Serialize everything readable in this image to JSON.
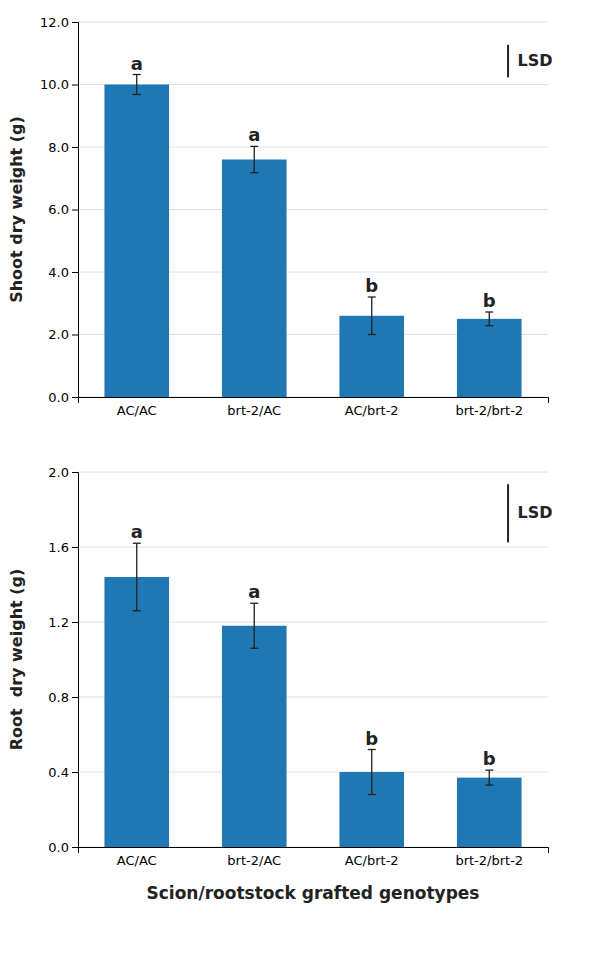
{
  "chart_data": [
    {
      "type": "bar",
      "categories": [
        "AC/AC",
        "brt-2/AC",
        "AC/brt-2",
        "brt-2/brt-2"
      ],
      "values": [
        10.0,
        7.6,
        2.6,
        2.5
      ],
      "errors": [
        0.32,
        0.42,
        0.6,
        0.22
      ],
      "annotations": [
        "a",
        "a",
        "b",
        "b"
      ],
      "lsd": {
        "label": "LSD",
        "center": 10.75,
        "half": 0.52
      },
      "ylabel": "Shoot dry weight (g)",
      "ylim": [
        0,
        12.0
      ],
      "yticks": [
        {
          "value": 0.0,
          "label": "0.0"
        },
        {
          "value": 2.0,
          "label": "2.0"
        },
        {
          "value": 4.0,
          "label": "4.0"
        },
        {
          "value": 6.0,
          "label": "6.0"
        },
        {
          "value": 8.0,
          "label": "8.0"
        },
        {
          "value": 10.0,
          "label": "10.0"
        },
        {
          "value": 12.0,
          "label": "12.0"
        }
      ],
      "grid": true
    },
    {
      "type": "bar",
      "categories": [
        "AC/AC",
        "brt-2/AC",
        "AC/brt-2",
        "brt-2/brt-2"
      ],
      "values": [
        1.44,
        1.18,
        0.4,
        0.37
      ],
      "errors": [
        0.18,
        0.12,
        0.12,
        0.04
      ],
      "annotations": [
        "a",
        "a",
        "b",
        "b"
      ],
      "lsd": {
        "label": "LSD",
        "center": 1.78,
        "half": 0.155
      },
      "ylabel": "Root  dry weight (g)",
      "xlabel": "Scion/rootstock grafted genotypes",
      "ylim": [
        0,
        2.0
      ],
      "yticks": [
        {
          "value": 0.0,
          "label": "0.0"
        },
        0.4,
        0.8,
        1.2,
        1.6,
        {
          "value": 2.0,
          "label": "2.0"
        }
      ],
      "grid": true
    }
  ]
}
